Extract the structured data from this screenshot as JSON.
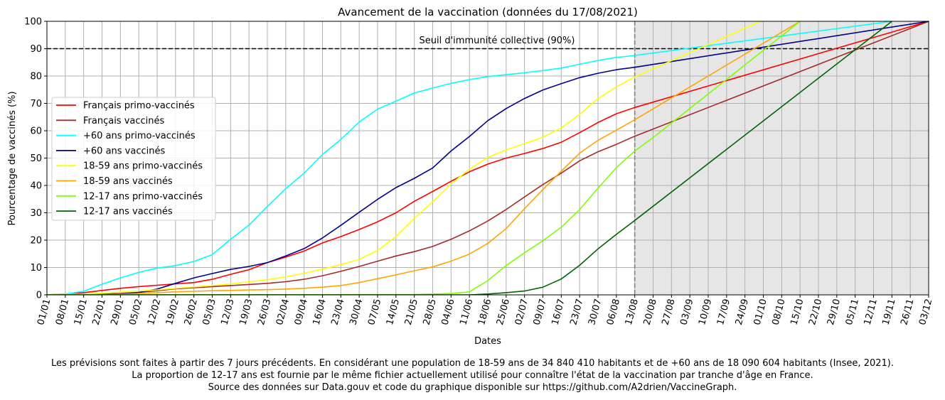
{
  "chart_data": {
    "type": "line",
    "title": "Avancement de la vaccination (données du 17/08/2021)",
    "xlabel": "Dates",
    "ylabel": "Pourcentage de vaccinés (%)",
    "ylim": [
      0,
      100
    ],
    "yticks": [
      0,
      10,
      20,
      30,
      40,
      50,
      60,
      70,
      80,
      90,
      100
    ],
    "x_range": [
      "2021-01-01",
      "2021-12-03"
    ],
    "x_ticks": [
      "01/01",
      "08/01",
      "15/01",
      "22/01",
      "29/01",
      "05/02",
      "12/02",
      "19/02",
      "26/02",
      "05/03",
      "12/03",
      "19/03",
      "26/03",
      "02/04",
      "09/04",
      "16/04",
      "23/04",
      "30/04",
      "07/05",
      "14/05",
      "21/05",
      "28/05",
      "04/06",
      "11/06",
      "18/06",
      "25/06",
      "02/07",
      "09/07",
      "16/07",
      "23/07",
      "30/07",
      "06/08",
      "13/08",
      "20/08",
      "27/08",
      "03/09",
      "10/09",
      "17/09",
      "24/09",
      "01/10",
      "08/10",
      "15/10",
      "22/10",
      "29/10",
      "05/11",
      "12/11",
      "19/11",
      "26/11",
      "03/12"
    ],
    "grid": true,
    "legend_position": "center-left",
    "threshold": {
      "value": 90,
      "label": "Seuil d'immunité collective (90%)"
    },
    "forecast_start": "2021-08-13",
    "series": [
      {
        "name": "Français primo-vaccinés",
        "color": "#ff0000",
        "points": [
          [
            "2021-01-01",
            0
          ],
          [
            "2021-01-08",
            0.3
          ],
          [
            "2021-01-15",
            0.8
          ],
          [
            "2021-01-22",
            1.6
          ],
          [
            "2021-01-29",
            2.4
          ],
          [
            "2021-02-05",
            3
          ],
          [
            "2021-02-12",
            3.5
          ],
          [
            "2021-02-19",
            4
          ],
          [
            "2021-02-26",
            4.5
          ],
          [
            "2021-03-05",
            5.7
          ],
          [
            "2021-03-12",
            7.5
          ],
          [
            "2021-03-19",
            9.2
          ],
          [
            "2021-03-26",
            11.8
          ],
          [
            "2021-04-02",
            13.8
          ],
          [
            "2021-04-09",
            16
          ],
          [
            "2021-04-16",
            19
          ],
          [
            "2021-04-23",
            21.3
          ],
          [
            "2021-04-30",
            23.9
          ],
          [
            "2021-05-07",
            26.7
          ],
          [
            "2021-05-14",
            30
          ],
          [
            "2021-05-21",
            34.2
          ],
          [
            "2021-05-28",
            37.8
          ],
          [
            "2021-06-04",
            41.5
          ],
          [
            "2021-06-11",
            45
          ],
          [
            "2021-06-18",
            47.8
          ],
          [
            "2021-06-25",
            50
          ],
          [
            "2021-07-02",
            51.7
          ],
          [
            "2021-07-09",
            53.5
          ],
          [
            "2021-07-16",
            55.8
          ],
          [
            "2021-07-23",
            59.3
          ],
          [
            "2021-07-30",
            63
          ],
          [
            "2021-08-06",
            66.2
          ],
          [
            "2021-08-13",
            68.5
          ],
          [
            "2021-12-03",
            100
          ]
        ]
      },
      {
        "name": "Français vaccinés",
        "color": "#a52a2a",
        "points": [
          [
            "2021-01-01",
            0
          ],
          [
            "2021-01-15",
            0
          ],
          [
            "2021-01-22",
            0.3
          ],
          [
            "2021-01-29",
            0.5
          ],
          [
            "2021-02-05",
            0.9
          ],
          [
            "2021-02-12",
            1.5
          ],
          [
            "2021-02-19",
            2.2
          ],
          [
            "2021-02-26",
            2.6
          ],
          [
            "2021-03-05",
            3
          ],
          [
            "2021-03-12",
            3.4
          ],
          [
            "2021-03-19",
            3.8
          ],
          [
            "2021-03-26",
            4.2
          ],
          [
            "2021-04-02",
            4.8
          ],
          [
            "2021-04-09",
            5.7
          ],
          [
            "2021-04-16",
            7
          ],
          [
            "2021-04-23",
            8.6
          ],
          [
            "2021-04-30",
            10.4
          ],
          [
            "2021-05-07",
            12.3
          ],
          [
            "2021-05-14",
            14.2
          ],
          [
            "2021-05-21",
            15.8
          ],
          [
            "2021-05-28",
            17.7
          ],
          [
            "2021-06-04",
            20.3
          ],
          [
            "2021-06-11",
            23.4
          ],
          [
            "2021-06-18",
            27
          ],
          [
            "2021-06-25",
            31.2
          ],
          [
            "2021-07-02",
            35.8
          ],
          [
            "2021-07-09",
            40.3
          ],
          [
            "2021-07-16",
            44.5
          ],
          [
            "2021-07-23",
            49
          ],
          [
            "2021-07-30",
            52.3
          ],
          [
            "2021-08-06",
            55
          ],
          [
            "2021-08-13",
            58
          ],
          [
            "2021-12-03",
            100
          ]
        ]
      },
      {
        "name": "+60 ans primo-vaccinés",
        "color": "#00ffff",
        "points": [
          [
            "2021-01-01",
            0
          ],
          [
            "2021-01-08",
            0.3
          ],
          [
            "2021-01-15",
            1.3
          ],
          [
            "2021-01-22",
            3.9
          ],
          [
            "2021-01-29",
            6.2
          ],
          [
            "2021-02-05",
            8.2
          ],
          [
            "2021-02-12",
            9.8
          ],
          [
            "2021-02-19",
            10.7
          ],
          [
            "2021-02-26",
            12.2
          ],
          [
            "2021-03-05",
            14.7
          ],
          [
            "2021-03-12",
            20.3
          ],
          [
            "2021-03-19",
            25.5
          ],
          [
            "2021-03-26",
            32.3
          ],
          [
            "2021-04-02",
            38.8
          ],
          [
            "2021-04-09",
            44.5
          ],
          [
            "2021-04-16",
            51.3
          ],
          [
            "2021-04-23",
            56.8
          ],
          [
            "2021-04-30",
            63.2
          ],
          [
            "2021-05-07",
            67.9
          ],
          [
            "2021-05-14",
            70.8
          ],
          [
            "2021-05-21",
            73.8
          ],
          [
            "2021-05-28",
            75.6
          ],
          [
            "2021-06-04",
            77.3
          ],
          [
            "2021-06-11",
            78.7
          ],
          [
            "2021-06-18",
            79.8
          ],
          [
            "2021-06-25",
            80.5
          ],
          [
            "2021-07-02",
            81.2
          ],
          [
            "2021-07-09",
            82
          ],
          [
            "2021-07-16",
            82.9
          ],
          [
            "2021-07-23",
            84.3
          ],
          [
            "2021-07-30",
            85.7
          ],
          [
            "2021-08-06",
            86.8
          ],
          [
            "2021-08-13",
            87.5
          ],
          [
            "2021-11-19",
            100
          ]
        ]
      },
      {
        "name": "+60 ans vaccinés",
        "color": "#00008b",
        "points": [
          [
            "2021-01-01",
            0
          ],
          [
            "2021-01-22",
            0
          ],
          [
            "2021-01-29",
            0.3
          ],
          [
            "2021-02-05",
            0.9
          ],
          [
            "2021-02-12",
            2.1
          ],
          [
            "2021-02-19",
            4.2
          ],
          [
            "2021-02-26",
            6.2
          ],
          [
            "2021-03-05",
            7.8
          ],
          [
            "2021-03-12",
            9.3
          ],
          [
            "2021-03-19",
            10.4
          ],
          [
            "2021-03-26",
            11.8
          ],
          [
            "2021-04-02",
            14.2
          ],
          [
            "2021-04-09",
            16.9
          ],
          [
            "2021-04-16",
            20.8
          ],
          [
            "2021-04-23",
            25.4
          ],
          [
            "2021-04-30",
            30.2
          ],
          [
            "2021-05-07",
            34.9
          ],
          [
            "2021-05-14",
            39.2
          ],
          [
            "2021-05-21",
            42.6
          ],
          [
            "2021-05-28",
            46.4
          ],
          [
            "2021-06-04",
            52.6
          ],
          [
            "2021-06-11",
            57.9
          ],
          [
            "2021-06-18",
            63.7
          ],
          [
            "2021-06-25",
            68.1
          ],
          [
            "2021-07-02",
            71.8
          ],
          [
            "2021-07-09",
            74.9
          ],
          [
            "2021-07-16",
            77.2
          ],
          [
            "2021-07-23",
            79.4
          ],
          [
            "2021-07-30",
            81
          ],
          [
            "2021-08-06",
            82.3
          ],
          [
            "2021-08-13",
            83.2
          ],
          [
            "2021-12-03",
            100
          ]
        ]
      },
      {
        "name": "18-59 ans primo-vaccinés",
        "color": "#ffff00",
        "points": [
          [
            "2021-01-01",
            0
          ],
          [
            "2021-01-15",
            0.3
          ],
          [
            "2021-01-22",
            0.6
          ],
          [
            "2021-01-29",
            1
          ],
          [
            "2021-02-05",
            1.4
          ],
          [
            "2021-02-12",
            1.8
          ],
          [
            "2021-02-19",
            2.4
          ],
          [
            "2021-02-26",
            2.9
          ],
          [
            "2021-03-05",
            3.4
          ],
          [
            "2021-03-12",
            4
          ],
          [
            "2021-03-19",
            4.8
          ],
          [
            "2021-03-26",
            5.5
          ],
          [
            "2021-04-02",
            6.6
          ],
          [
            "2021-04-09",
            7.9
          ],
          [
            "2021-04-16",
            9.4
          ],
          [
            "2021-04-23",
            11
          ],
          [
            "2021-04-30",
            13
          ],
          [
            "2021-05-07",
            16.2
          ],
          [
            "2021-05-14",
            21.3
          ],
          [
            "2021-05-21",
            28
          ],
          [
            "2021-05-28",
            34
          ],
          [
            "2021-06-04",
            40.5
          ],
          [
            "2021-06-11",
            46
          ],
          [
            "2021-06-18",
            50.2
          ],
          [
            "2021-06-25",
            53
          ],
          [
            "2021-07-02",
            55.3
          ],
          [
            "2021-07-09",
            57.7
          ],
          [
            "2021-07-16",
            61
          ],
          [
            "2021-07-23",
            66
          ],
          [
            "2021-07-30",
            71.8
          ],
          [
            "2021-08-06",
            76
          ],
          [
            "2021-08-13",
            79.7
          ],
          [
            "2021-09-30",
            100
          ]
        ]
      },
      {
        "name": "18-59 ans vaccinés",
        "color": "#ffa500",
        "points": [
          [
            "2021-01-01",
            0
          ],
          [
            "2021-01-22",
            0
          ],
          [
            "2021-01-29",
            0.2
          ],
          [
            "2021-02-05",
            0.5
          ],
          [
            "2021-02-12",
            0.8
          ],
          [
            "2021-02-19",
            1.1
          ],
          [
            "2021-02-26",
            1.3
          ],
          [
            "2021-03-05",
            1.5
          ],
          [
            "2021-03-12",
            1.6
          ],
          [
            "2021-03-19",
            1.8
          ],
          [
            "2021-03-26",
            1.9
          ],
          [
            "2021-04-02",
            2.1
          ],
          [
            "2021-04-09",
            2.4
          ],
          [
            "2021-04-16",
            2.8
          ],
          [
            "2021-04-23",
            3.4
          ],
          [
            "2021-04-30",
            4.5
          ],
          [
            "2021-05-07",
            5.9
          ],
          [
            "2021-05-14",
            7.3
          ],
          [
            "2021-05-21",
            8.8
          ],
          [
            "2021-05-28",
            10.2
          ],
          [
            "2021-06-04",
            12.3
          ],
          [
            "2021-06-11",
            14.9
          ],
          [
            "2021-06-18",
            18.8
          ],
          [
            "2021-06-25",
            24.2
          ],
          [
            "2021-07-02",
            31.5
          ],
          [
            "2021-07-09",
            38.5
          ],
          [
            "2021-07-16",
            45.2
          ],
          [
            "2021-07-23",
            51.8
          ],
          [
            "2021-07-30",
            56.5
          ],
          [
            "2021-08-06",
            60.2
          ],
          [
            "2021-08-13",
            64
          ],
          [
            "2021-10-15",
            100
          ]
        ]
      },
      {
        "name": "12-17 ans primo-vaccinés",
        "color": "#7fff00",
        "points": [
          [
            "2021-01-01",
            0
          ],
          [
            "2021-05-21",
            0.1
          ],
          [
            "2021-05-28",
            0.3
          ],
          [
            "2021-06-04",
            0.5
          ],
          [
            "2021-06-11",
            1.1
          ],
          [
            "2021-06-18",
            5.2
          ],
          [
            "2021-06-25",
            10.7
          ],
          [
            "2021-07-02",
            15.4
          ],
          [
            "2021-07-09",
            19.8
          ],
          [
            "2021-07-16",
            24.7
          ],
          [
            "2021-07-23",
            31.2
          ],
          [
            "2021-07-30",
            39
          ],
          [
            "2021-08-06",
            46.5
          ],
          [
            "2021-08-13",
            52.6
          ],
          [
            "2021-08-20",
            57.5
          ],
          [
            "2021-10-15",
            100
          ]
        ]
      },
      {
        "name": "12-17 ans vaccinés",
        "color": "#006400",
        "points": [
          [
            "2021-01-01",
            0
          ],
          [
            "2021-06-11",
            0
          ],
          [
            "2021-06-18",
            0.3
          ],
          [
            "2021-06-25",
            0.8
          ],
          [
            "2021-07-02",
            1.4
          ],
          [
            "2021-07-09",
            2.8
          ],
          [
            "2021-07-16",
            5.8
          ],
          [
            "2021-07-23",
            10.8
          ],
          [
            "2021-07-30",
            16.8
          ],
          [
            "2021-08-06",
            22.1
          ],
          [
            "2021-08-13",
            27.2
          ],
          [
            "2021-11-19",
            100
          ]
        ]
      }
    ]
  },
  "footnote": {
    "line1": "Les prévisions sont faites à partir des 7 jours précédents. En considérant une population de 18-59 ans de 34 840 410 habitants et de +60 ans de 18 090 604 habitants (Insee, 2021).",
    "line2": "La proportion de 12-17 ans est fournie par le même fichier actuellement utilisé pour connaître l'état de la vaccination par tranche d'âge en France.",
    "line3": "Source des données sur Data.gouv et code du graphique disponible sur https://github.com/A2drien/VaccineGraph."
  }
}
